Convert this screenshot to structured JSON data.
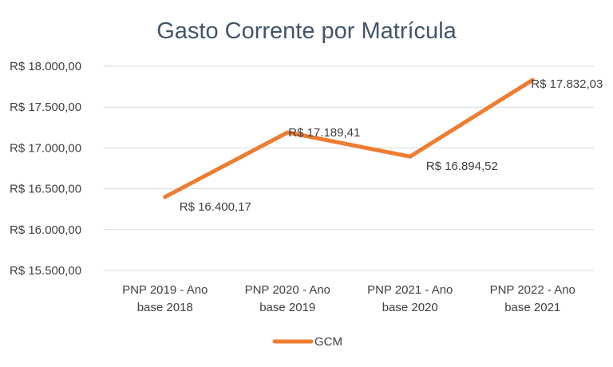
{
  "chart_data": {
    "type": "line",
    "title": "Gasto Corrente por Matrícula",
    "categories": [
      [
        "PNP 2019 - Ano",
        "base 2018"
      ],
      [
        "PNP 2020 - Ano",
        "base 2019"
      ],
      [
        "PNP 2021 - Ano",
        "base 2020"
      ],
      [
        "PNP 2022 - Ano",
        "base 2021"
      ]
    ],
    "series": [
      {
        "name": "GCM",
        "color": "#ed7d31",
        "values": [
          16400.17,
          17189.41,
          16894.52,
          17832.03
        ],
        "labels": [
          "R$ 16.400,17",
          "R$ 17.189,41",
          "R$ 16.894,52",
          "R$ 17.832,03"
        ]
      }
    ],
    "ylim": [
      15500,
      18000
    ],
    "yticks": [
      15500,
      16000,
      16500,
      17000,
      17500,
      18000
    ],
    "ytick_labels": [
      "R$ 15.500,00",
      "R$ 16.000,00",
      "R$ 16.500,00",
      "R$ 17.000,00",
      "R$ 17.500,00",
      "R$ 18.000,00"
    ],
    "grid": true,
    "legend": "bottom"
  }
}
